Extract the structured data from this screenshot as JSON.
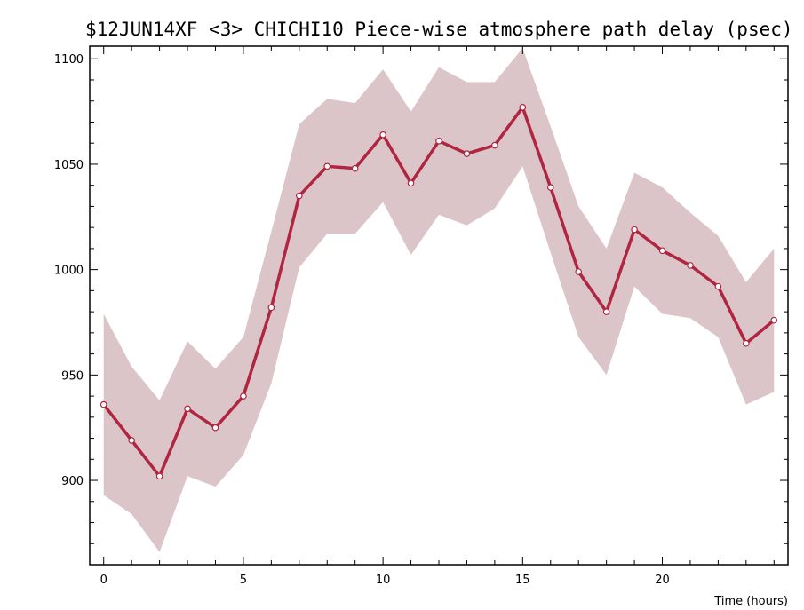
{
  "chart_data": {
    "type": "line",
    "title": "$12JUN14XF <3>   CHICHI10  Piece-wise atmosphere path delay (psec)",
    "xlabel": "Time (hours)",
    "ylabel": "",
    "xlim": [
      -0.5,
      24.5
    ],
    "ylim": [
      860,
      1106
    ],
    "x_ticks": [
      0,
      5,
      10,
      15,
      20
    ],
    "x_tick_labels": [
      "0",
      "5",
      "10",
      "15",
      "20"
    ],
    "y_ticks": [
      900,
      950,
      1000,
      1050,
      1100
    ],
    "y_tick_labels": [
      "900",
      "950",
      "1000",
      "1050",
      "1100"
    ],
    "grid": false,
    "colors": {
      "line": "#b0253f",
      "band": "#dcc5c9",
      "marker_fill": "#ffffff"
    },
    "series": [
      {
        "x": [
          0,
          1,
          2,
          3,
          4,
          5,
          6,
          7,
          8,
          9,
          10,
          11,
          12,
          13,
          14,
          15,
          16,
          17,
          18,
          19,
          20,
          21,
          22,
          23,
          24
        ],
        "values": [
          936,
          919,
          902,
          934,
          925,
          940,
          982,
          1035,
          1049,
          1048,
          1064,
          1041,
          1061,
          1055,
          1059,
          1077,
          1039,
          999,
          980,
          1019,
          1009,
          1002,
          992,
          965,
          976
        ],
        "upper": [
          979,
          954,
          938,
          966,
          953,
          968,
          1018,
          1069,
          1081,
          1079,
          1095,
          1075,
          1096,
          1089,
          1089,
          1105,
          1068,
          1030,
          1010,
          1046,
          1039,
          1027,
          1016,
          994,
          1010
        ],
        "lower": [
          893,
          884,
          866,
          902,
          897,
          912,
          946,
          1001,
          1017,
          1017,
          1032,
          1007,
          1026,
          1021,
          1029,
          1049,
          1008,
          968,
          950,
          992,
          979,
          977,
          968,
          936,
          942
        ]
      }
    ]
  }
}
